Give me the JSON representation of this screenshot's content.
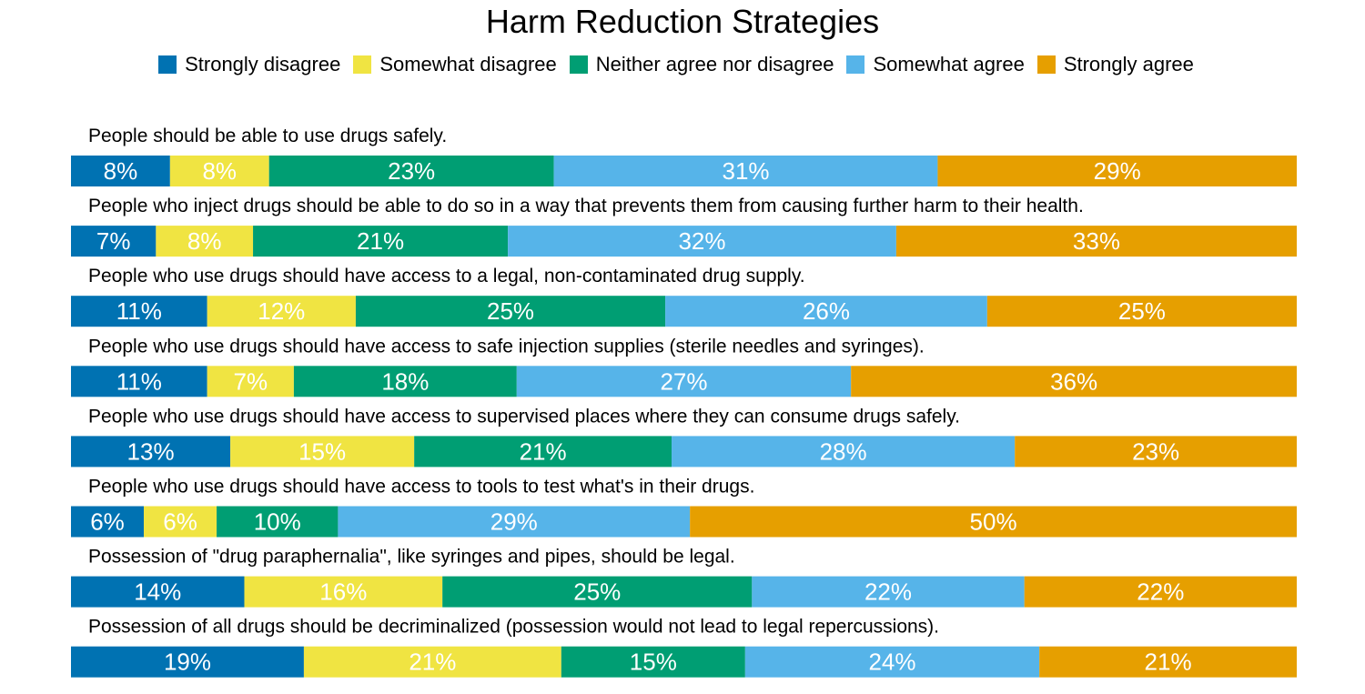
{
  "chart_data": {
    "type": "bar",
    "orientation": "horizontal-stacked-100",
    "title": "Harm Reduction Strategies",
    "legend_position": "top",
    "series": [
      {
        "name": "Strongly disagree",
        "color": "#0072B2"
      },
      {
        "name": "Somewhat disagree",
        "color": "#F0E442"
      },
      {
        "name": "Neither agree nor disagree",
        "color": "#009E73"
      },
      {
        "name": "Somewhat agree",
        "color": "#56B4E9"
      },
      {
        "name": "Strongly agree",
        "color": "#E69F00"
      }
    ],
    "categories": [
      "People should be able to use drugs safely.",
      "People who inject drugs should be able to do so in a way that prevents them from causing further harm to their health.",
      "People who use drugs should have access to a legal, non-contaminated drug supply.",
      "People who use drugs should have access to safe injection supplies (sterile needles and syringes).",
      "People who use drugs should have access to supervised places where they can consume drugs safely.",
      "People who use drugs should have access to tools to test what's in their drugs.",
      "Possession of \"drug paraphernalia\", like syringes and pipes, should be legal.",
      "Possession of all drugs should be decriminalized (possession would not lead to legal repercussions)."
    ],
    "values": [
      [
        8,
        8,
        23,
        31,
        29
      ],
      [
        7,
        8,
        21,
        32,
        33
      ],
      [
        11,
        12,
        25,
        26,
        25
      ],
      [
        11,
        7,
        18,
        27,
        36
      ],
      [
        13,
        15,
        21,
        28,
        23
      ],
      [
        6,
        6,
        10,
        29,
        50
      ],
      [
        14,
        16,
        25,
        22,
        22
      ],
      [
        19,
        21,
        15,
        24,
        21
      ]
    ],
    "value_suffix": "%"
  }
}
